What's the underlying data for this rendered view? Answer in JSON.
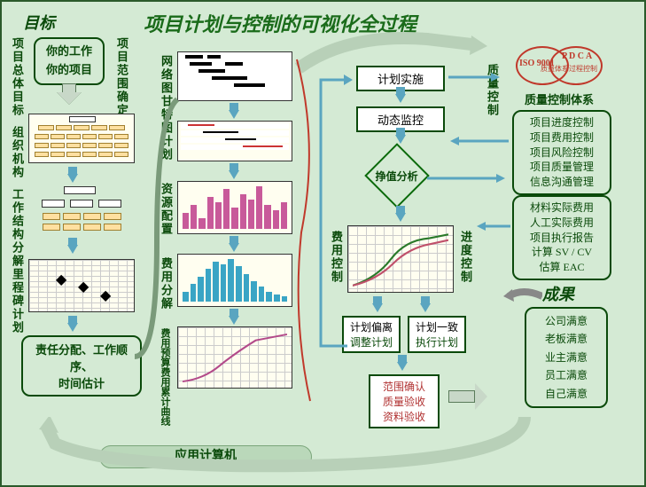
{
  "title": "项目计划与控制的可视化全过程",
  "left": {
    "head": "目标",
    "box1": "你的工作",
    "box2": "你的项目",
    "labels": [
      "项目总体目标",
      "组织机构",
      "工作结构分解",
      "里程碑计划"
    ],
    "scope_label": "项目范围确定",
    "bottom": "责任分配、工作顺序、\n时间估计"
  },
  "mid_labels": [
    "网络图甘特图计划",
    "资源配置",
    "费用分解",
    "费用预算费用累计曲线"
  ],
  "footer": "应用计算机",
  "right_flow": {
    "b1": "计划实施",
    "b2": "动态监控",
    "diamond": "挣值分析",
    "cost_ctrl": "费用控制",
    "prog_ctrl": "进度控制",
    "dev": "计划偏离",
    "dev2": "调整计划",
    "ok": "计划一致",
    "ok2": "执行计划",
    "final": "范围确认\n质量验收\n资料验收"
  },
  "qc": {
    "label": "质量控制",
    "iso": "ISO 9001",
    "pdca": "P D C A",
    "pdca_sub": "质量体系过程控制",
    "sys": "质量控制体系",
    "list1": [
      "项目进度控制",
      "项目费用控制",
      "项目风险控制",
      "项目质量管理",
      "信息沟通管理"
    ],
    "list2": [
      "材料实际费用",
      "人工实际费用",
      "项目执行报告",
      "计算 SV / CV",
      "估算    EAC"
    ]
  },
  "results": {
    "head": "成果",
    "items": [
      "公司满意",
      "老板满意",
      "业主满意",
      "员工满意",
      "自己满意"
    ]
  },
  "charts": {
    "bars_resource": [
      30,
      45,
      20,
      60,
      50,
      75,
      40,
      65,
      55,
      80,
      45,
      35,
      50
    ],
    "bars_cost": [
      20,
      35,
      50,
      65,
      80,
      75,
      85,
      70,
      55,
      40,
      30,
      20,
      15,
      10
    ],
    "bar_color_resource": "#c85a9a",
    "bar_color_cost": "#3aa5c5"
  },
  "colors": {
    "bg": "#d4ead4",
    "text": "#0a4a0a",
    "accent": "#1a6b1a",
    "arrow": "#5aa5c0"
  }
}
